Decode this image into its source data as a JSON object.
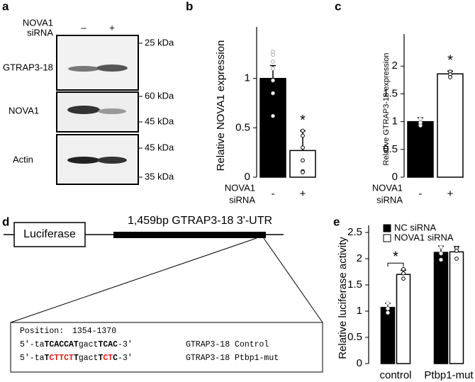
{
  "panel_a": {
    "letter": "a",
    "treatment": [
      "NOVA1",
      "siRNA"
    ],
    "lanes": [
      "–",
      "+"
    ],
    "blots": [
      {
        "label": "GTRAP3-18",
        "markers": [
          "25 kDa"
        ]
      },
      {
        "label": "NOVA1",
        "markers": [
          "60 kDa",
          "45 kDa"
        ]
      },
      {
        "label": "Actin",
        "markers": [
          "45 kDa",
          "35 kDa"
        ]
      }
    ]
  },
  "panel_d": {
    "letter": "d",
    "title": "1,459bp GTRAP3-18 3'-UTR",
    "box": "Luciferase",
    "position_label": "Position:",
    "position": "1354-1370",
    "lines": [
      {
        "segments": [
          {
            "text": "5'-ta",
            "bold": false,
            "color": "#000000"
          },
          {
            "text": "TCACCAT",
            "bold": true,
            "color": "#000000"
          },
          {
            "text": "gact",
            "bold": false,
            "color": "#000000"
          },
          {
            "text": "TCAC",
            "bold": true,
            "color": "#000000"
          },
          {
            "text": "-3'",
            "bold": false,
            "color": "#000000"
          }
        ],
        "name": "GTRAP3-18 Control"
      },
      {
        "segments": [
          {
            "text": "5'-ta",
            "bold": false,
            "color": "#000000"
          },
          {
            "text": "T",
            "bold": true,
            "color": "#000000"
          },
          {
            "text": "CTTCT",
            "bold": true,
            "color": "#e0201b"
          },
          {
            "text": "T",
            "bold": true,
            "color": "#000000"
          },
          {
            "text": "gact",
            "bold": false,
            "color": "#000000"
          },
          {
            "text": "T",
            "bold": true,
            "color": "#000000"
          },
          {
            "text": "CT",
            "bold": true,
            "color": "#e0201b"
          },
          {
            "text": "C",
            "bold": true,
            "color": "#000000"
          },
          {
            "text": "-3'",
            "bold": false,
            "color": "#000000"
          }
        ],
        "name": "GTRAP3-18 Ptbp1-mut"
      }
    ]
  },
  "chart_data": [
    {
      "panel": "b",
      "type": "bar",
      "ylabel": "Relative  NOVA1 expression",
      "xlabel": [
        "NOVA1",
        "siRNA"
      ],
      "categories": [
        "-",
        "+"
      ],
      "values": [
        1.0,
        0.27
      ],
      "errors": [
        0.13,
        0.2
      ],
      "colors": [
        "#000000",
        "#ffffff"
      ],
      "points": [
        [
          1.27,
          1.24,
          1.17,
          1.1,
          0.98,
          0.85,
          0.62
        ],
        [
          0.47,
          0.42,
          0.3,
          0.17,
          0.06,
          0.05
        ]
      ],
      "significance": [
        null,
        "*"
      ],
      "ylim": [
        0,
        1.45
      ],
      "yticks": [
        0,
        0.5,
        1
      ]
    },
    {
      "panel": "c",
      "type": "bar",
      "ylabel": "Relative  GTRAP3-18 expression",
      "xlabel": [
        "NOVA1",
        "siRNA"
      ],
      "categories": [
        "-",
        "+"
      ],
      "values": [
        1.0,
        1.86
      ],
      "errors": [
        0.07,
        0.05
      ],
      "colors": [
        "#000000",
        "#ffffff"
      ],
      "points": [
        [
          1.05,
          0.98,
          0.93
        ],
        [
          1.9,
          1.85,
          1.8
        ]
      ],
      "significance": [
        null,
        "*"
      ],
      "ylim": [
        0,
        2.45
      ],
      "yticks": [
        0,
        0.5,
        1,
        1.5,
        2
      ]
    },
    {
      "panel": "e",
      "type": "grouped_bar",
      "ylabel": "Relative luciferase activity",
      "categories": [
        "control",
        "Ptbp1-mut"
      ],
      "series": [
        {
          "name": "NC siRNA",
          "color": "#000000",
          "values": [
            1.07,
            2.12
          ],
          "errors": [
            0.08,
            0.12
          ],
          "points": [
            [
              1.15,
              1.05,
              0.97
            ],
            [
              2.22,
              2.1,
              1.98
            ]
          ]
        },
        {
          "name": "NOVA1 siRNA",
          "color": "#ffffff",
          "values": [
            1.7,
            2.13
          ],
          "errors": [
            0.08,
            0.1
          ],
          "points": [
            [
              1.8,
              1.72,
              1.62
            ],
            [
              2.2,
              2.15,
              2.0
            ]
          ]
        }
      ],
      "significance": [
        "*",
        null
      ],
      "ylim": [
        0,
        2.5
      ],
      "yticks": [
        0,
        0.5,
        1,
        1.5,
        2,
        2.5
      ]
    }
  ]
}
